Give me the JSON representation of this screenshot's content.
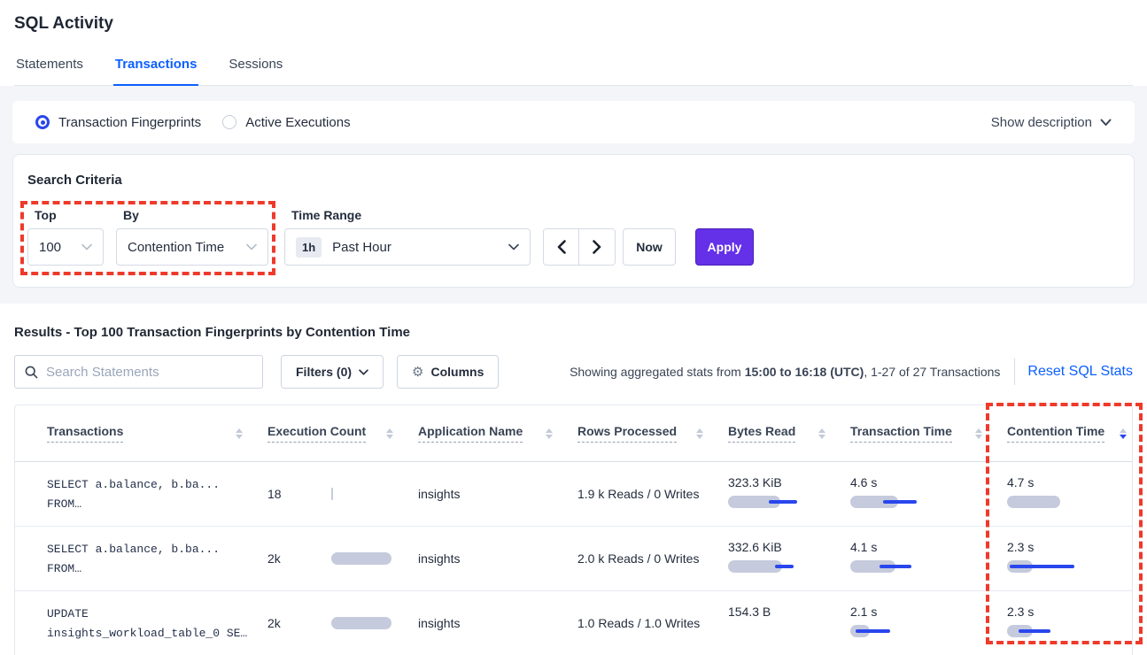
{
  "page": {
    "title": "SQL Activity"
  },
  "tabs": [
    {
      "label": "Statements",
      "active": false
    },
    {
      "label": "Transactions",
      "active": true
    },
    {
      "label": "Sessions",
      "active": false
    }
  ],
  "view_toggle": {
    "options": [
      {
        "label": "Transaction Fingerprints",
        "selected": true
      },
      {
        "label": "Active Executions",
        "selected": false
      }
    ],
    "show_description_label": "Show description"
  },
  "search_criteria": {
    "title": "Search Criteria",
    "top": {
      "label": "Top",
      "value": "100"
    },
    "by": {
      "label": "By",
      "value": "Contention Time"
    },
    "time_range": {
      "label": "Time Range",
      "badge": "1h",
      "value": "Past Hour"
    },
    "now_label": "Now",
    "apply_label": "Apply"
  },
  "results": {
    "title": "Results - Top 100 Transaction Fingerprints by Contention Time",
    "search_placeholder": "Search Statements",
    "filters_label": "Filters (0)",
    "columns_label": "Columns",
    "stats_prefix": "Showing aggregated stats from ",
    "stats_bold": "15:00 to 16:18 (UTC)",
    "stats_suffix": ", 1-27 of 27 Transactions",
    "reset_label": "Reset SQL Stats"
  },
  "table": {
    "columns": [
      {
        "label": "Transactions",
        "name": "transactions",
        "sort": null
      },
      {
        "label": "Execution Count",
        "name": "execution-count",
        "sort": null
      },
      {
        "label": "Application Name",
        "name": "application-name",
        "sort": null
      },
      {
        "label": "Rows Processed",
        "name": "rows-processed",
        "sort": null
      },
      {
        "label": "Bytes Read",
        "name": "bytes-read",
        "sort": null
      },
      {
        "label": "Transaction Time",
        "name": "transaction-time",
        "sort": null
      },
      {
        "label": "Contention Time",
        "name": "contention-time",
        "sort": "desc"
      }
    ],
    "rows": [
      {
        "statement_line1": "SELECT a.balance, b.ba...",
        "statement_line2": "FROM…",
        "execution_count": "18",
        "execution_bar": 2,
        "application_name": "insights",
        "rows_processed": "1.9 k Reads / 0 Writes",
        "bytes_read": {
          "text": "323.3 KiB",
          "bar": 59,
          "line": [
            46,
            32
          ]
        },
        "transaction_time": {
          "text": "4.6 s",
          "bar": 54,
          "line": [
            37,
            38
          ]
        },
        "contention_time": {
          "text": "4.7 s",
          "bar": 60,
          "line": null
        }
      },
      {
        "statement_line1": "SELECT a.balance, b.ba...",
        "statement_line2": "FROM…",
        "execution_count": "2k",
        "execution_bar": 68,
        "application_name": "insights",
        "rows_processed": "2.0 k Reads / 0 Writes",
        "bytes_read": {
          "text": "332.6 KiB",
          "bar": 61,
          "line": [
            53,
            21
          ]
        },
        "transaction_time": {
          "text": "4.1 s",
          "bar": 51,
          "line": [
            33,
            36
          ]
        },
        "contention_time": {
          "text": "2.3 s",
          "bar": 29,
          "line": [
            3,
            73
          ]
        }
      },
      {
        "statement_line1": "UPDATE",
        "statement_line2": "insights_workload_table_0 SE…",
        "execution_count": "2k",
        "execution_bar": 68,
        "application_name": "insights",
        "rows_processed": "1.0 Reads / 1.0 Writes",
        "bytes_read": {
          "text": "154.3 B",
          "bar": 0,
          "line": null
        },
        "transaction_time": {
          "text": "2.1 s",
          "bar": 22,
          "line": [
            6,
            39
          ]
        },
        "contention_time": {
          "text": "2.3 s",
          "bar": 29,
          "line": [
            13,
            36
          ]
        }
      }
    ]
  },
  "colors": {
    "accent_blue": "#0b5fff",
    "bar_blue": "#2946ed",
    "bar_gray": "#c5cbdc",
    "apply_purple": "#6430e8",
    "annotation_red": "#ee3a2b"
  }
}
